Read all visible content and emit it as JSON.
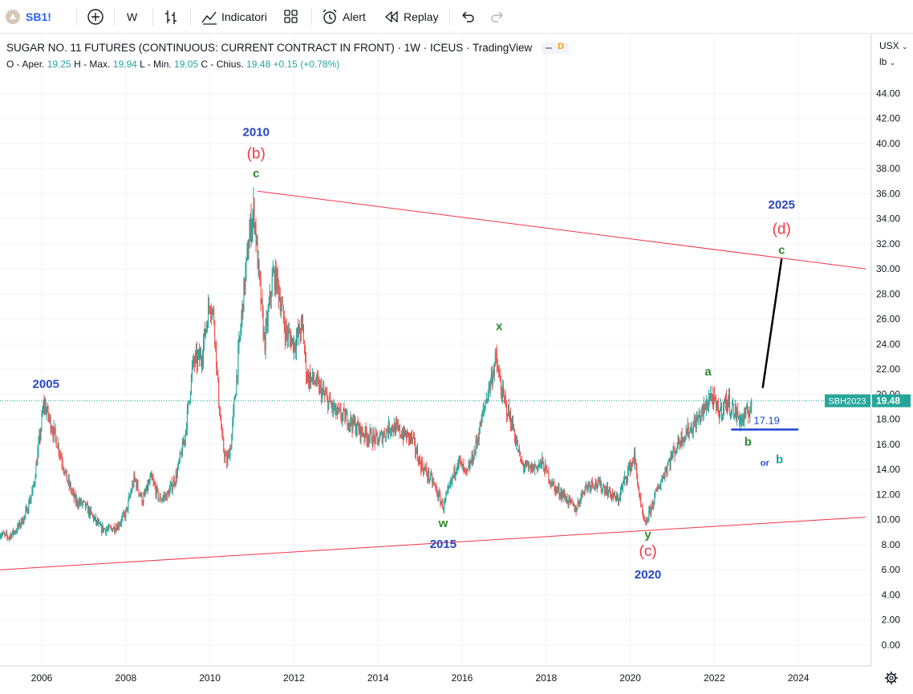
{
  "toolbar": {
    "symbol": "SB1!",
    "interval": "W",
    "indicators_label": "Indicatori",
    "alert_label": "Alert",
    "replay_label": "Replay"
  },
  "legend": {
    "title": "SUGAR NO. 11 FUTURES (CONTINUOUS: CURRENT CONTRACT IN FRONT) · 1W · ICEUS · TradingView",
    "delay_badge": "D",
    "open_label": "O - Aper.",
    "open": "19.25",
    "high_label": "H - Max.",
    "high": "19.94",
    "low_label": "L - Min.",
    "low": "19.05",
    "close_label": "C - Chius.",
    "close": "19.48",
    "change": "+0.15",
    "change_pct": "(+0.78%)"
  },
  "price_scale": {
    "currency": "USX",
    "unit": "lb"
  },
  "chart_data": {
    "type": "candlestick",
    "ylim": [
      -0.6,
      46.5
    ],
    "y_ticks": [
      "0.00",
      "2.00",
      "4.00",
      "6.00",
      "8.00",
      "10.00",
      "12.00",
      "14.00",
      "16.00",
      "18.00",
      "20.00",
      "22.00",
      "24.00",
      "26.00",
      "28.00",
      "30.00",
      "32.00",
      "34.00",
      "36.00",
      "38.00",
      "40.00",
      "42.00",
      "44.00"
    ],
    "x_ticks": [
      "2006",
      "2008",
      "2010",
      "2012",
      "2014",
      "2016",
      "2018",
      "2020",
      "2022",
      "2024"
    ],
    "price_path": [
      [
        2005.0,
        8.9
      ],
      [
        2005.2,
        8.6
      ],
      [
        2005.4,
        9.2
      ],
      [
        2005.6,
        10.3
      ],
      [
        2005.8,
        12.5
      ],
      [
        2005.95,
        16.5
      ],
      [
        2006.05,
        19.3
      ],
      [
        2006.2,
        17.8
      ],
      [
        2006.4,
        15.8
      ],
      [
        2006.6,
        13.2
      ],
      [
        2006.8,
        11.5
      ],
      [
        2007.0,
        11.2
      ],
      [
        2007.2,
        10.3
      ],
      [
        2007.4,
        9.3
      ],
      [
        2007.6,
        9.2
      ],
      [
        2007.8,
        9.5
      ],
      [
        2008.0,
        10.5
      ],
      [
        2008.2,
        13.3
      ],
      [
        2008.4,
        11.5
      ],
      [
        2008.6,
        13.3
      ],
      [
        2008.8,
        11.6
      ],
      [
        2009.0,
        12.0
      ],
      [
        2009.2,
        13.5
      ],
      [
        2009.4,
        16.5
      ],
      [
        2009.6,
        22.5
      ],
      [
        2009.8,
        23.0
      ],
      [
        2010.0,
        27.5
      ],
      [
        2010.1,
        26.0
      ],
      [
        2010.2,
        20.0
      ],
      [
        2010.3,
        16.0
      ],
      [
        2010.4,
        14.5
      ],
      [
        2010.5,
        16.0
      ],
      [
        2010.6,
        20.0
      ],
      [
        2010.8,
        28.0
      ],
      [
        2010.95,
        33.0
      ],
      [
        2011.05,
        34.8
      ],
      [
        2011.15,
        30.0
      ],
      [
        2011.3,
        24.0
      ],
      [
        2011.5,
        29.5
      ],
      [
        2011.6,
        29.0
      ],
      [
        2011.8,
        25.0
      ],
      [
        2012.0,
        24.0
      ],
      [
        2012.2,
        25.5
      ],
      [
        2012.3,
        21.5
      ],
      [
        2012.5,
        21.0
      ],
      [
        2012.7,
        20.0
      ],
      [
        2013.0,
        18.5
      ],
      [
        2013.3,
        18.0
      ],
      [
        2013.6,
        17.0
      ],
      [
        2014.0,
        16.3
      ],
      [
        2014.3,
        17.5
      ],
      [
        2014.6,
        16.8
      ],
      [
        2014.8,
        16.5
      ],
      [
        2015.0,
        14.5
      ],
      [
        2015.3,
        13.0
      ],
      [
        2015.55,
        11.0
      ],
      [
        2015.7,
        12.5
      ],
      [
        2015.9,
        14.8
      ],
      [
        2016.1,
        13.5
      ],
      [
        2016.3,
        15.5
      ],
      [
        2016.6,
        20.0
      ],
      [
        2016.8,
        22.8
      ],
      [
        2016.95,
        20.0
      ],
      [
        2017.2,
        17.5
      ],
      [
        2017.4,
        14.5
      ],
      [
        2017.6,
        14.0
      ],
      [
        2017.9,
        14.5
      ],
      [
        2018.2,
        12.5
      ],
      [
        2018.4,
        12.0
      ],
      [
        2018.7,
        10.8
      ],
      [
        2018.9,
        12.5
      ],
      [
        2019.1,
        13.0
      ],
      [
        2019.4,
        12.5
      ],
      [
        2019.7,
        11.5
      ],
      [
        2019.9,
        13.5
      ],
      [
        2020.1,
        15.0
      ],
      [
        2020.25,
        11.0
      ],
      [
        2020.35,
        9.5
      ],
      [
        2020.6,
        12.0
      ],
      [
        2020.9,
        14.5
      ],
      [
        2021.2,
        16.5
      ],
      [
        2021.5,
        17.5
      ],
      [
        2021.8,
        19.0
      ],
      [
        2021.9,
        20.0
      ],
      [
        2022.1,
        18.5
      ],
      [
        2022.3,
        19.5
      ],
      [
        2022.5,
        18.5
      ],
      [
        2022.65,
        17.9
      ],
      [
        2022.8,
        18.5
      ],
      [
        2022.9,
        19.48
      ]
    ],
    "trendlines": [
      {
        "color": "#f23645",
        "from": [
          2011.13,
          36.2
        ],
        "to": [
          2025.6,
          30.0
        ]
      },
      {
        "color": "#f23645",
        "from": [
          2005.0,
          6.0
        ],
        "to": [
          2025.6,
          10.2
        ]
      },
      {
        "color": "#000000",
        "from": [
          2023.15,
          20.5
        ],
        "to": [
          2023.6,
          30.8
        ]
      },
      {
        "color": "#1848cc",
        "from": [
          2022.4,
          17.19
        ],
        "to": [
          2024.0,
          17.19
        ]
      }
    ],
    "level_label": "17.19",
    "annotations": [
      {
        "text": "2005",
        "color": "#2745c4",
        "x": 2006.1,
        "y": 20.5,
        "bold": true
      },
      {
        "text": "2010",
        "color": "#2745c4",
        "x": 2011.1,
        "y": 40.6,
        "bold": true
      },
      {
        "text": "(b)",
        "color": "#f23645",
        "x": 2011.1,
        "y": 38.8,
        "bold": false,
        "large": true
      },
      {
        "text": "c",
        "color": "#2e8b2e",
        "x": 2011.1,
        "y": 37.3,
        "bold": true
      },
      {
        "text": "x",
        "color": "#2e8b2e",
        "x": 2016.88,
        "y": 25.1,
        "bold": true
      },
      {
        "text": "w",
        "color": "#2e8b2e",
        "x": 2015.55,
        "y": 9.4,
        "bold": true
      },
      {
        "text": "2015",
        "color": "#2745c4",
        "x": 2015.55,
        "y": 7.75,
        "bold": true
      },
      {
        "text": "y",
        "color": "#2e8b2e",
        "x": 2020.42,
        "y": 8.5,
        "bold": true
      },
      {
        "text": "(c)",
        "color": "#f23645",
        "x": 2020.42,
        "y": 7.1,
        "bold": false,
        "large": true
      },
      {
        "text": "2020",
        "color": "#2745c4",
        "x": 2020.42,
        "y": 5.3,
        "bold": true
      },
      {
        "text": "a",
        "color": "#2e8b2e",
        "x": 2021.85,
        "y": 21.5,
        "bold": true
      },
      {
        "text": "b",
        "color": "#2e8b2e",
        "x": 2022.8,
        "y": 15.9,
        "bold": true
      },
      {
        "text": "or",
        "color": "#2745c4",
        "x": 2023.2,
        "y": 14.3,
        "bold": true,
        "small": true
      },
      {
        "text": "b",
        "color": "#1aa3a3",
        "x": 2023.55,
        "y": 14.5,
        "bold": true
      },
      {
        "text": "2025",
        "color": "#2745c4",
        "x": 2023.6,
        "y": 34.8,
        "bold": true
      },
      {
        "text": "(d)",
        "color": "#f23645",
        "x": 2023.6,
        "y": 32.8,
        "bold": false,
        "large": true
      },
      {
        "text": "c",
        "color": "#2e8b2e",
        "x": 2023.6,
        "y": 31.2,
        "bold": true
      }
    ],
    "last_price": {
      "symbol": "SBH2023",
      "value": "19.48",
      "color": "#26a69a"
    }
  },
  "icons": {
    "symbol": "sugar-icon",
    "add": "plus-circle-icon",
    "bars": "bar-style-icon",
    "indicators": "indicators-icon",
    "templates": "templates-icon",
    "alert": "alarm-clock-icon",
    "replay": "replay-icon",
    "undo": "undo-icon",
    "redo": "redo-icon",
    "settings": "gear-icon"
  }
}
